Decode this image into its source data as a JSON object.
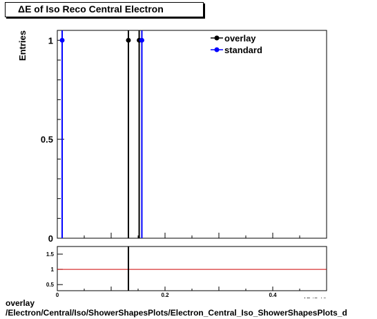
{
  "title": "ΔE of Iso Reco Central  Electron",
  "footer": {
    "line1": "overlay",
    "line2": "/Electron/Central/Iso/ShowerShapesPlots/Electron_Central_Iso_ShowerShapesPlots_d"
  },
  "chart_data": [
    {
      "type": "scatter",
      "panel": "main",
      "ylabel": "Entries",
      "xlabel": "",
      "xlim": [
        0,
        0.5
      ],
      "ylim": [
        0,
        1.05
      ],
      "y_ticks": [
        0,
        0.5,
        1
      ],
      "y_tick_labels": [
        "0",
        "0.5",
        "1"
      ],
      "legend_position": "top-right",
      "series": [
        {
          "name": "overlay",
          "color": "#000000",
          "x": [
            0.132,
            0.152
          ],
          "y": [
            1,
            1
          ]
        },
        {
          "name": "standard",
          "color": "#0000ff",
          "x": [
            0.009,
            0.157
          ],
          "y": [
            1,
            1
          ]
        }
      ]
    },
    {
      "type": "line",
      "panel": "ratio",
      "xlabel": "ΔE (GeV)",
      "xlim": [
        0,
        0.5
      ],
      "ylim": [
        0.3,
        1.75
      ],
      "x_ticks": [
        0,
        0.2,
        0.4
      ],
      "x_tick_labels": [
        "0",
        "0.2",
        "0.4"
      ],
      "y_ticks": [
        0.5,
        1,
        1.5
      ],
      "y_tick_labels": [
        "0.5",
        "1",
        "1.5"
      ],
      "reference_line": {
        "y": 1,
        "color": "#cc0000"
      },
      "marker_x": 0.132
    }
  ]
}
